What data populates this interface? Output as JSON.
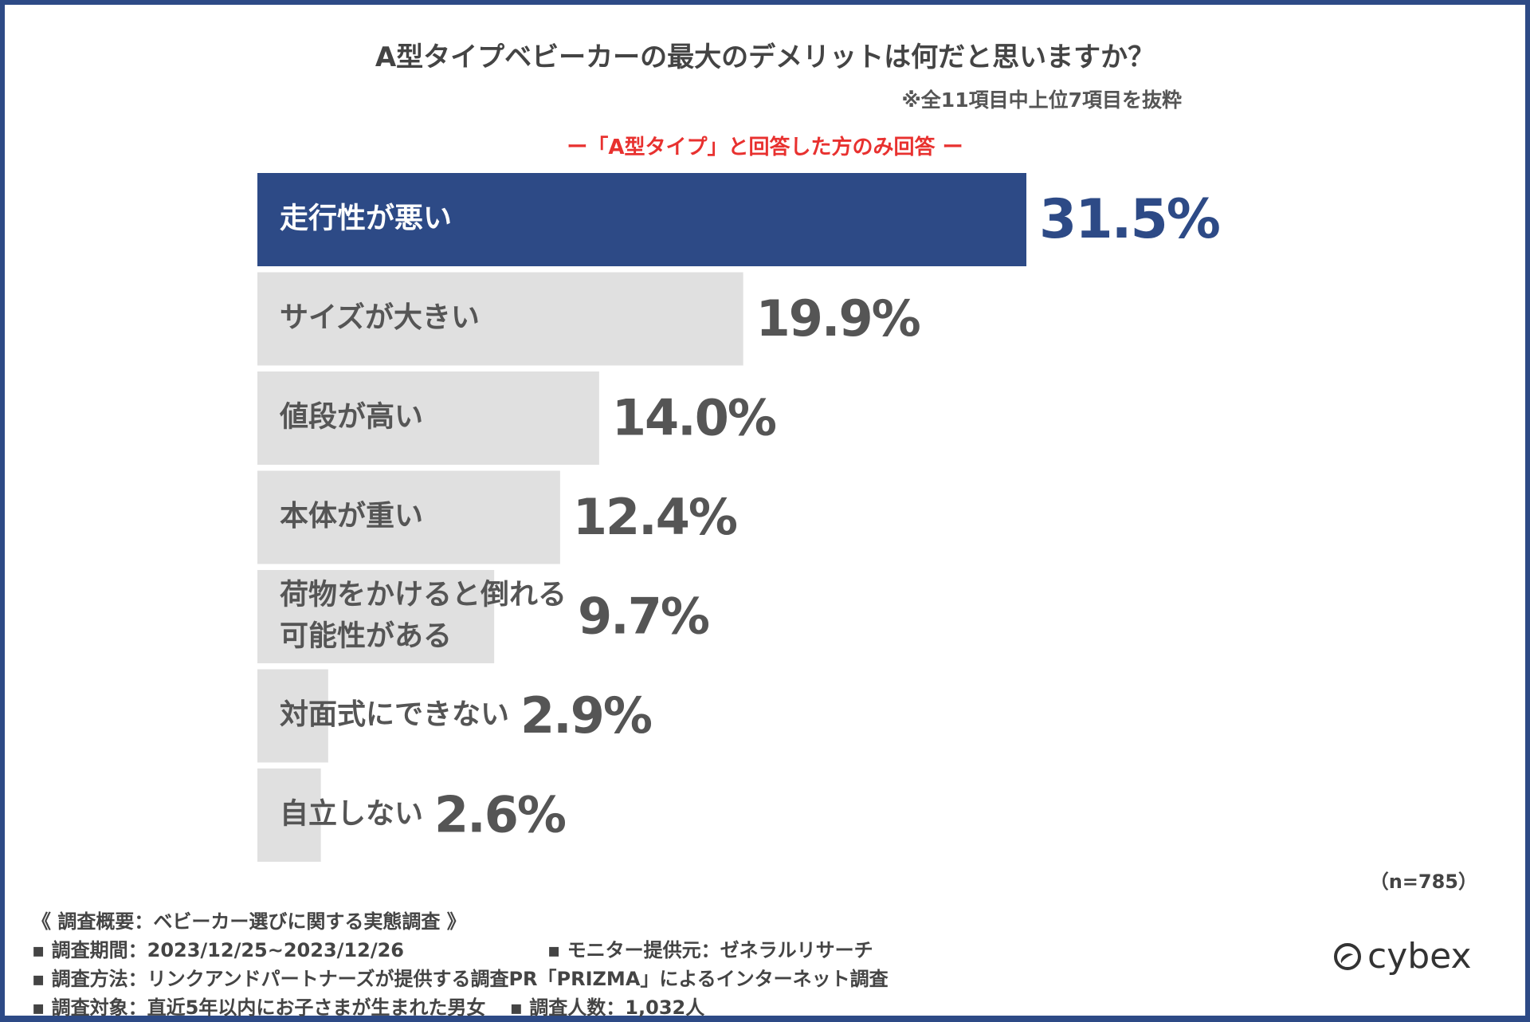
{
  "colors": {
    "highlight_bar": "#2d4a86",
    "bar": "#e0e0e0",
    "highlight_text": "#ffffff",
    "text": "#555555",
    "highlight_value": "#2d4a86",
    "value": "#555555",
    "subtitle": "#e8312f",
    "border": "#2d4a86"
  },
  "header": {
    "title": "A型タイプベビーカーの最大のデメリットは何だと思いますか？",
    "note": "※全11項目中上位7項目を抜粋",
    "subtitle": "ー「A型タイプ」と回答した方のみ回答 ー"
  },
  "chart_data": {
    "type": "bar",
    "orientation": "horizontal",
    "categories": [
      "走行性が悪い",
      "サイズが大きい",
      "値段が高い",
      "本体が重い",
      "荷物をかけると倒れる\n可能性がある",
      "対面式にできない",
      "自立しない"
    ],
    "values": [
      31.5,
      19.9,
      14.0,
      12.4,
      9.7,
      2.9,
      2.6
    ],
    "value_labels": [
      "31.5%",
      "19.9%",
      "14.0%",
      "12.4%",
      "9.7%",
      "2.9%",
      "2.6%"
    ],
    "unit": "%",
    "highlight_index": 0
  },
  "n_label": "（n=785）",
  "footer": {
    "heading": "《 調査概要：ベビーカー選びに関する実態調査 》",
    "period": "▪ 調査期間：2023/12/25~2023/12/26",
    "provider": "▪ モニター提供元：ゼネラルリサーチ",
    "method": "▪ 調査方法：リンクアンドパートナーズが提供する調査PR「PRIZMA」によるインターネット調査",
    "target": "▪ 調査対象：直近5年以内にお子さまが生まれた男女",
    "count": "▪ 調査人数：1,032人"
  },
  "logo": {
    "text": "cybex"
  }
}
